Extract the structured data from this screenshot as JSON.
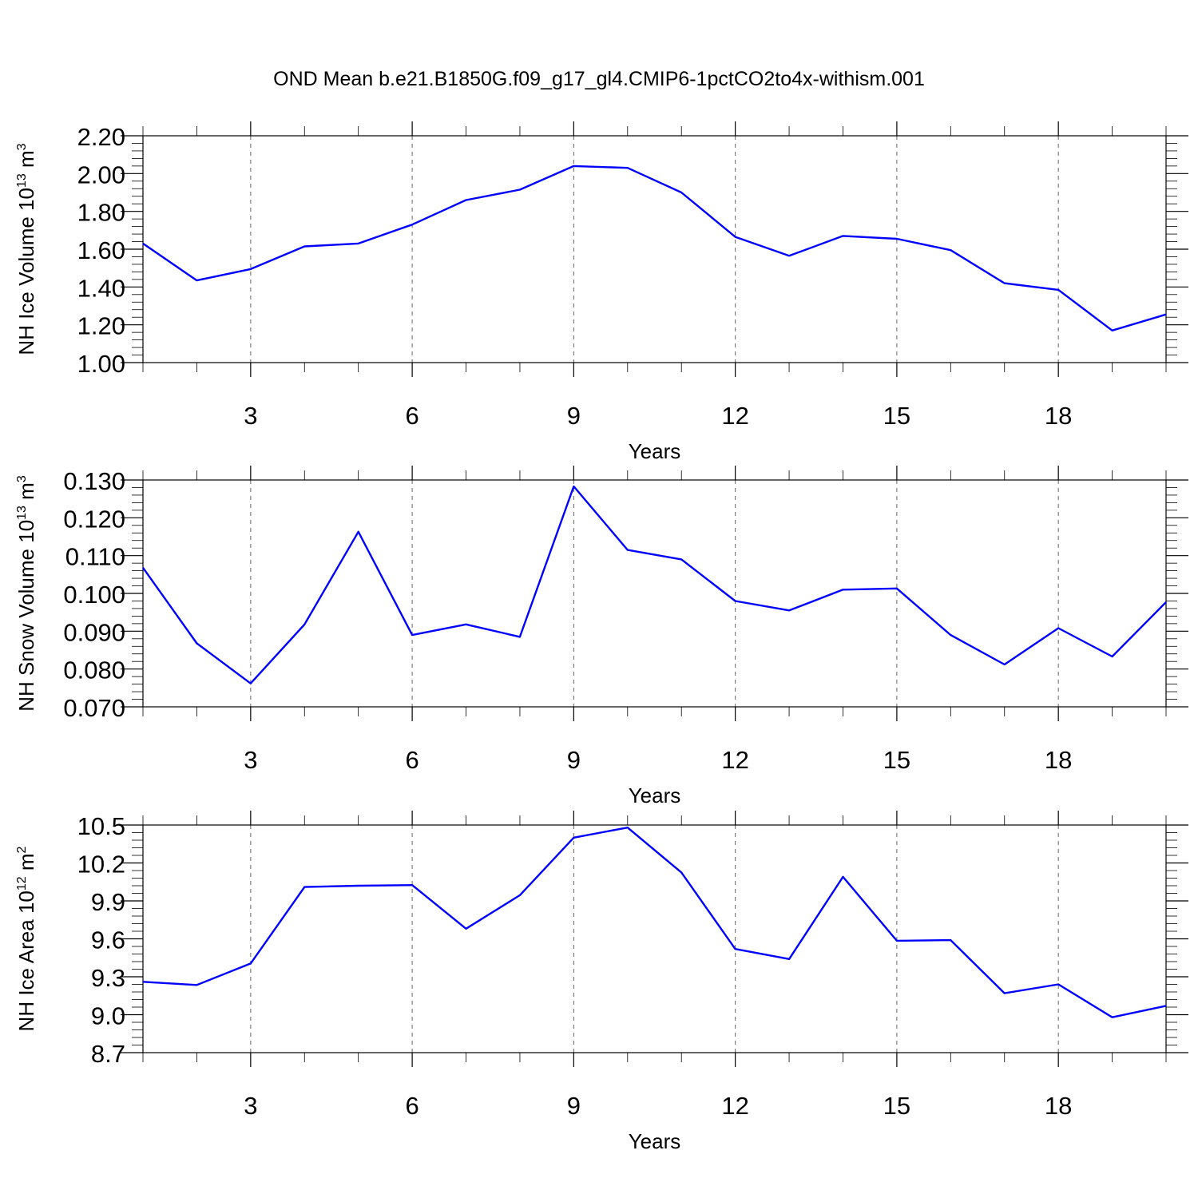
{
  "title": "OND Mean b.e21.B1850G.f09_g17_gl4.CMIP6-1pctCO2to4x-withism.001",
  "chart_data": [
    {
      "type": "line",
      "ylabel": "NH Ice Volume 10",
      "ylabel_sup": "13",
      "ylabel_unit": "m",
      "ylabel_unit_sup": "3",
      "xlabel": "Years",
      "xlim": [
        1,
        20
      ],
      "ylim": [
        1.0,
        2.2
      ],
      "xticks": [
        3,
        6,
        9,
        12,
        15,
        18
      ],
      "yticks": [
        "2.20",
        "2.00",
        "1.80",
        "1.60",
        "1.40",
        "1.20",
        "1.00"
      ],
      "ytick_values": [
        2.2,
        2.0,
        1.8,
        1.6,
        1.4,
        1.2,
        1.0
      ],
      "grid_x": true,
      "color": "#0000ff",
      "x": [
        1,
        2,
        3,
        4,
        5,
        6,
        7,
        8,
        9,
        10,
        11,
        12,
        13,
        14,
        15,
        16,
        17,
        18,
        19,
        20
      ],
      "values": [
        1.63,
        1.435,
        1.495,
        1.615,
        1.63,
        1.73,
        1.86,
        1.915,
        2.04,
        2.03,
        1.9,
        1.665,
        1.565,
        1.67,
        1.655,
        1.595,
        1.42,
        1.385,
        1.17,
        1.255
      ]
    },
    {
      "type": "line",
      "ylabel": "NH Snow Volume 10",
      "ylabel_sup": "13",
      "ylabel_unit": "m",
      "ylabel_unit_sup": "3",
      "xlabel": "Years",
      "xlim": [
        1,
        20
      ],
      "ylim": [
        0.07,
        0.13
      ],
      "xticks": [
        3,
        6,
        9,
        12,
        15,
        18
      ],
      "yticks": [
        "0.130",
        "0.120",
        "0.110",
        "0.100",
        "0.090",
        "0.080",
        "0.070"
      ],
      "ytick_values": [
        0.13,
        0.12,
        0.11,
        0.1,
        0.09,
        0.08,
        0.07
      ],
      "grid_x": true,
      "color": "#0000ff",
      "x": [
        1,
        2,
        3,
        4,
        5,
        6,
        7,
        8,
        9,
        10,
        11,
        12,
        13,
        14,
        15,
        16,
        17,
        18,
        19,
        20
      ],
      "values": [
        0.1068,
        0.0868,
        0.0762,
        0.0918,
        0.1163,
        0.089,
        0.0918,
        0.0885,
        0.1283,
        0.1115,
        0.109,
        0.098,
        0.0955,
        0.101,
        0.1013,
        0.089,
        0.0812,
        0.0908,
        0.0833,
        0.0977
      ]
    },
    {
      "type": "line",
      "ylabel": "NH Ice Area 10",
      "ylabel_sup": "12",
      "ylabel_unit": "m",
      "ylabel_unit_sup": "2",
      "xlabel": "Years",
      "xlim": [
        1,
        20
      ],
      "ylim": [
        8.7,
        10.5
      ],
      "xticks": [
        3,
        6,
        9,
        12,
        15,
        18
      ],
      "yticks": [
        "10.5",
        "10.2",
        "9.9",
        "9.6",
        "9.3",
        "9.0",
        "8.7"
      ],
      "ytick_values": [
        10.5,
        10.2,
        9.9,
        9.6,
        9.3,
        9.0,
        8.7
      ],
      "grid_x": true,
      "color": "#0000ff",
      "x": [
        1,
        2,
        3,
        4,
        5,
        6,
        7,
        8,
        9,
        10,
        11,
        12,
        13,
        14,
        15,
        16,
        17,
        18,
        19,
        20
      ],
      "values": [
        9.26,
        9.235,
        9.405,
        10.01,
        10.02,
        10.025,
        9.68,
        9.945,
        10.4,
        10.48,
        10.125,
        9.52,
        9.44,
        10.09,
        9.585,
        9.59,
        9.17,
        9.24,
        8.98,
        9.07
      ]
    }
  ]
}
